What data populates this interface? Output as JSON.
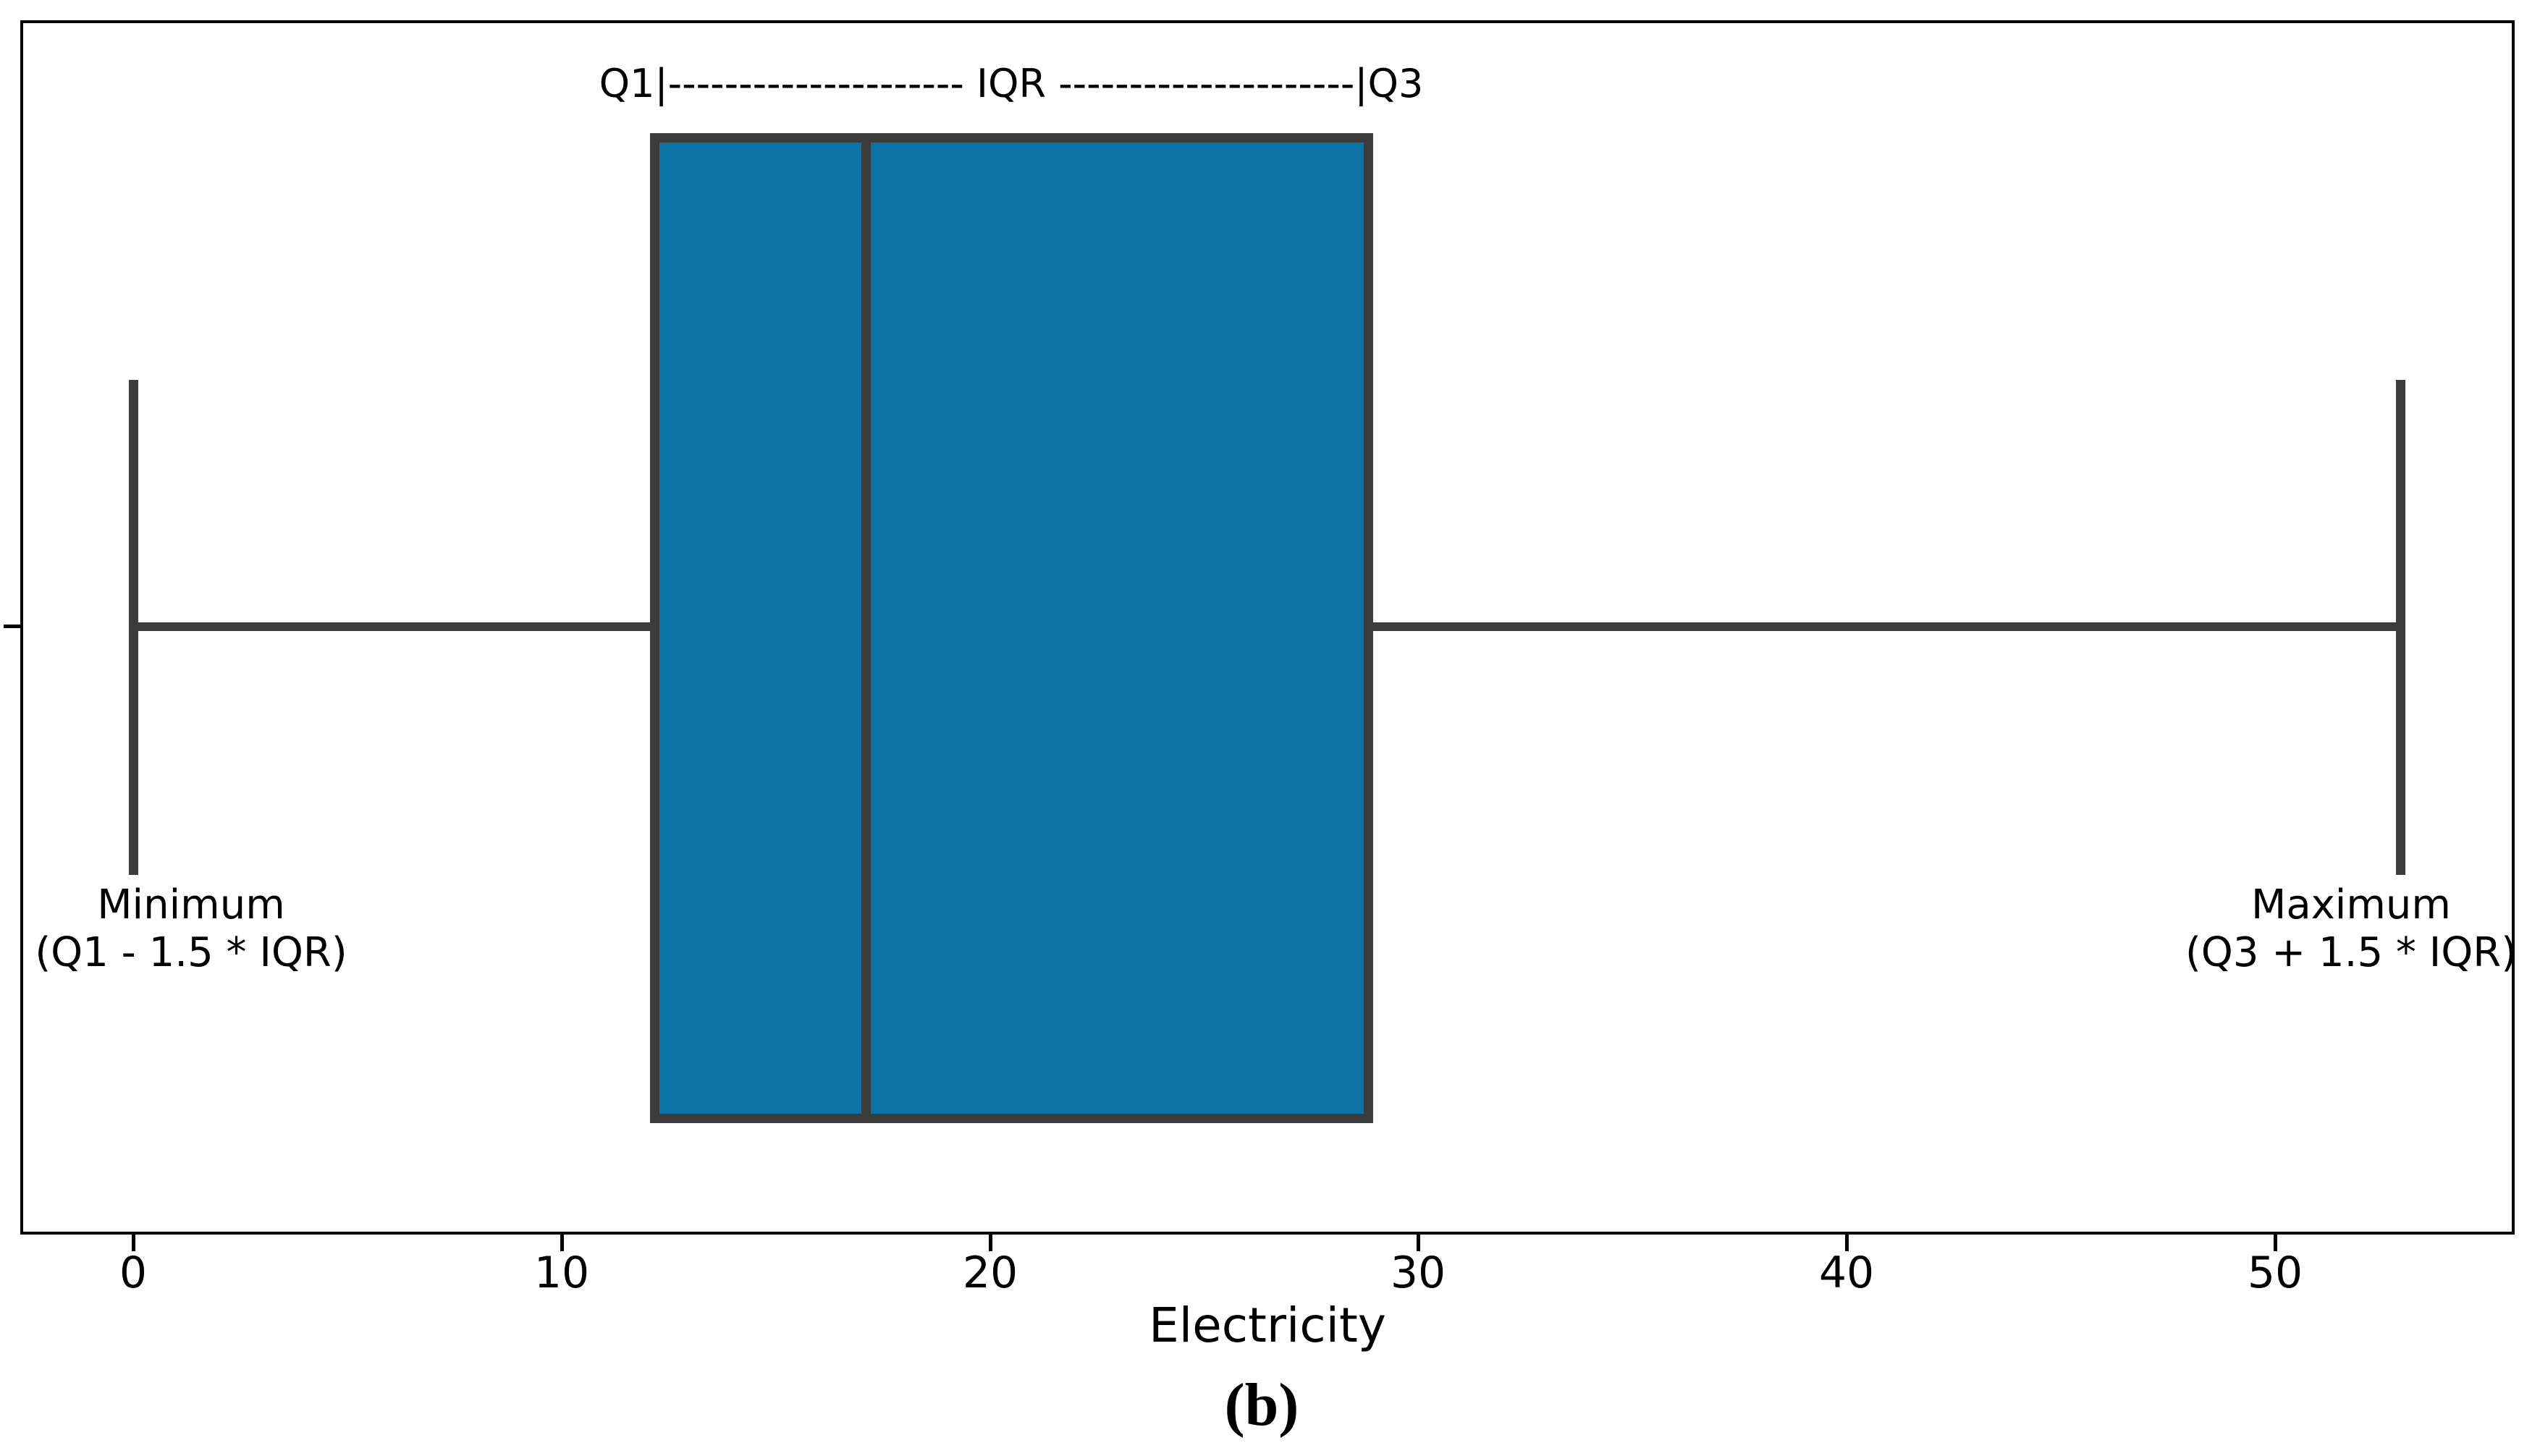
{
  "figure": {
    "caption": "(b)",
    "colors": {
      "box_fill": "#0b73a6",
      "box_edge": "#3b3b3b",
      "whisker": "#3b3b3b",
      "frame": "#000000",
      "text": "#000000"
    }
  },
  "annotation": {
    "iqr_line": "Q1|--------------------- IQR ---------------------|Q3"
  },
  "labels": {
    "minimum": {
      "line1": "Minimum",
      "line2": "(Q1 - 1.5 * IQR)"
    },
    "maximum": {
      "line1": "Maximum",
      "line2": "(Q3 + 1.5 * IQR)"
    }
  },
  "xaxis": {
    "label": "Electricity",
    "ticks": [
      "0",
      "10",
      "20",
      "30",
      "40",
      "50"
    ]
  },
  "chart_data": {
    "type": "boxplot",
    "orientation": "horizontal",
    "title": "",
    "xlabel": "Electricity",
    "ylabel": "",
    "xlim": [
      -2.6,
      55.6
    ],
    "xticks": [
      0,
      10,
      20,
      30,
      40,
      50
    ],
    "grid": false,
    "series": [
      {
        "name": "Electricity",
        "min": 0,
        "q1": 12.2,
        "median": 17.1,
        "q3": 28.8,
        "max": 52.9,
        "outliers": []
      }
    ],
    "annotations": [
      "Q1|--------------------- IQR ---------------------|Q3 (spanning box from Q1 to Q3)",
      "Minimum (Q1 - 1.5 * IQR) at left whisker",
      "Maximum (Q3 + 1.5 * IQR) at right whisker"
    ],
    "legend": null
  }
}
